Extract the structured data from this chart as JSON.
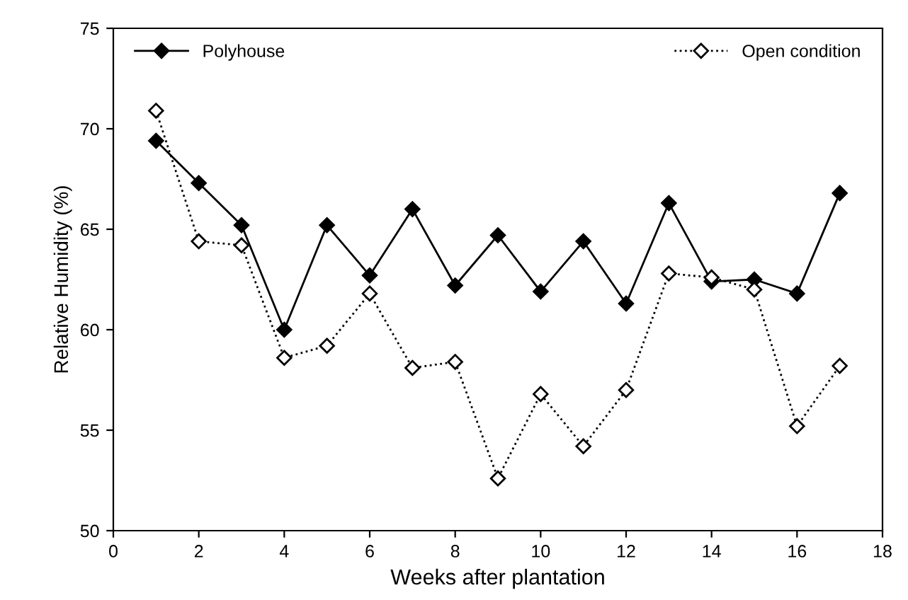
{
  "chart_data": {
    "type": "line",
    "xlabel": "Weeks after plantation",
    "ylabel": "Relative Humidity (%)",
    "x": [
      1,
      2,
      3,
      4,
      5,
      6,
      7,
      8,
      9,
      10,
      11,
      12,
      13,
      14,
      15,
      16,
      17
    ],
    "series": [
      {
        "name": "Polyhouse",
        "color": "#000000",
        "marker": "diamond",
        "line_style": "solid",
        "values": [
          69.4,
          67.3,
          65.2,
          60.0,
          65.2,
          62.7,
          66.0,
          62.2,
          64.7,
          61.9,
          64.4,
          61.3,
          66.3,
          62.4,
          62.5,
          61.8,
          66.8
        ]
      },
      {
        "name": "Open condition",
        "color": "#000000",
        "marker": "diamond",
        "line_style": "dotted",
        "values": [
          70.9,
          64.4,
          64.2,
          58.6,
          59.2,
          61.8,
          58.1,
          58.4,
          52.6,
          56.8,
          54.2,
          57.0,
          62.8,
          62.6,
          62.0,
          55.2,
          58.2
        ]
      }
    ],
    "xlim": [
      0,
      18
    ],
    "xticks": [
      0,
      2,
      4,
      6,
      8,
      10,
      12,
      14,
      16,
      18
    ],
    "ylim": [
      50,
      75
    ],
    "yticks": [
      50,
      55,
      60,
      65,
      70,
      75
    ],
    "grid": false,
    "legend": "top"
  }
}
